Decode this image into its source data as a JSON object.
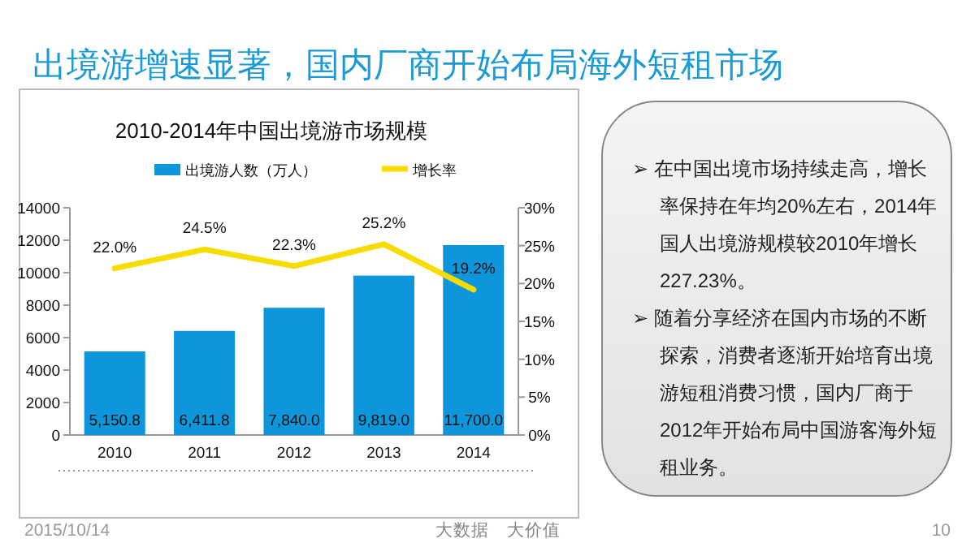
{
  "chart_data": [
    {
      "type": "bar",
      "title": "2010-2014年中国出境游市场规模",
      "categories": [
        "2010",
        "2011",
        "2012",
        "2013",
        "2014"
      ],
      "series": [
        {
          "name": "出境游人数（万人）",
          "type": "bar",
          "color": "#0e96dc",
          "values": [
            5150.8,
            6411.8,
            7840.0,
            9819.0,
            11700.0
          ],
          "value_labels": [
            "5,150.8",
            "6,411.8",
            "7,840.0",
            "9,819.0",
            "11,700.0"
          ]
        },
        {
          "name": "增长率",
          "type": "line",
          "axis": "y2",
          "color": "#f7dc00",
          "values": [
            22.0,
            24.5,
            22.3,
            25.2,
            19.2
          ],
          "value_labels": [
            "22.0%",
            "24.5%",
            "22.3%",
            "25.2%",
            "19.2%"
          ]
        }
      ],
      "ylim": [
        0,
        14000
      ],
      "yticks": [
        0,
        2000,
        4000,
        6000,
        8000,
        10000,
        12000,
        14000
      ],
      "y2lim": [
        0,
        30
      ],
      "y2ticks": [
        {
          "value": 0,
          "label": "0%"
        },
        {
          "value": 5,
          "label": "5%"
        },
        {
          "value": 10,
          "label": "10%"
        },
        {
          "value": 15,
          "label": "15%"
        },
        {
          "value": 20,
          "label": "20%"
        },
        {
          "value": 25,
          "label": "25%"
        },
        {
          "value": 30,
          "label": "30%"
        }
      ],
      "legend": "top",
      "grid": false,
      "marker": "none",
      "line_style": "solid",
      "annotations": [
        "出境游增速显著，国内厂商开始布局海外短租市场",
        "2015/10/14",
        "大数据　大价值",
        "10"
      ]
    },
    {
      "type": "other",
      "annotations": [
        "➢ 在中国出境市场持续走高，增长率保持在年均20%左右，2014年国人出境游规模较2010年增长227.23%。",
        "➢ 随着分享经济在国内市场的不断探索，消费者逐渐开始培育出境游短租消费习惯，国内厂商于2012年开始布局中国游客海外短租业务。"
      ]
    }
  ]
}
